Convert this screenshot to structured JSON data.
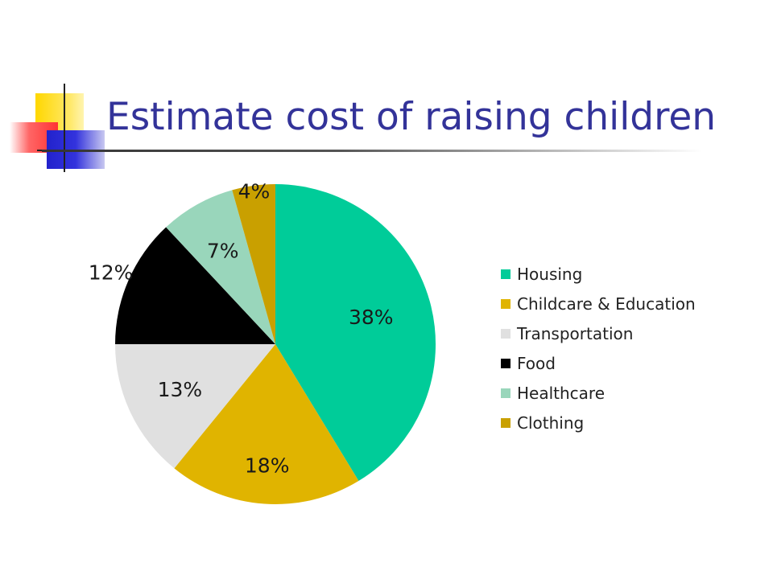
{
  "slide": {
    "title": "Estimate cost of raising children"
  },
  "chart_data": {
    "type": "pie",
    "categories": [
      "Housing",
      "Childcare & Education",
      "Transportation",
      "Food",
      "Healthcare",
      "Clothing"
    ],
    "values": [
      38,
      18,
      13,
      12,
      7,
      4
    ],
    "labels": [
      "38%",
      "18%",
      "13%",
      "12%",
      "7%",
      "4%"
    ],
    "colors": [
      "#00CC99",
      "#E0B400",
      "#E0E0E0",
      "#000000",
      "#99D6BB",
      "#C9A000"
    ],
    "legend": "right",
    "start_angle_deg": 0,
    "direction": "clockwise"
  }
}
